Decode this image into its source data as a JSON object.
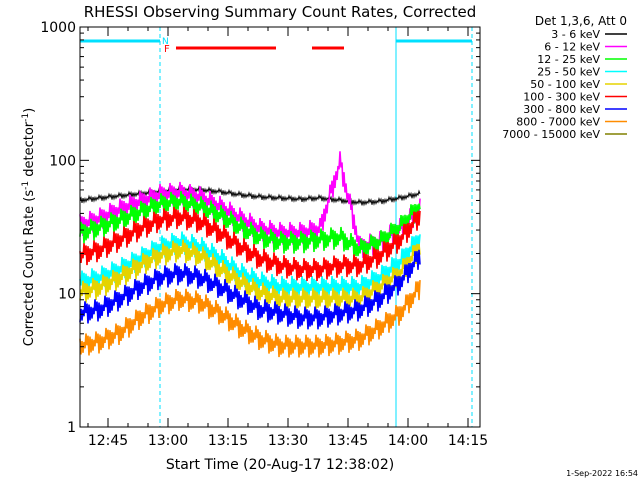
{
  "chart_data": {
    "type": "line",
    "title": "RHESSI Observing Summary Count Rates, Corrected",
    "xlabel": "Start Time (20-Aug-17 12:38:02)",
    "ylabel_main": "Corrected Count Rate (s",
    "ylabel_sup1": "-1",
    "ylabel_mid": " detector",
    "ylabel_sup2": "-1",
    "ylabel_end": ")",
    "yscale": "log",
    "ylim": [
      1,
      1000
    ],
    "xlim": [
      "12:38",
      "14:18"
    ],
    "xticks": [
      "12:45",
      "13:00",
      "13:15",
      "13:30",
      "13:45",
      "14:00",
      "14:15"
    ],
    "yticks": [
      "1",
      "10",
      "100",
      "1000"
    ],
    "legend_header": "Det 1,3,6, Att 0",
    "legend_position": "top-right",
    "timestamp": "1-Sep-2022 16:54",
    "flags": {
      "N": "N",
      "F": "F",
      "night_color": "#00e0ff",
      "flare_color": "#ff0000",
      "night_intervals": [
        [
          "12:38",
          "12:58"
        ],
        [
          "13:57",
          "14:16"
        ]
      ],
      "flare_intervals": [
        [
          "13:02",
          "13:27"
        ],
        [
          "13:36",
          "13:44"
        ]
      ]
    },
    "vlines": {
      "solid": [
        "12:38",
        "13:57"
      ],
      "dashed": [
        "12:58",
        "14:16"
      ],
      "color": "#00e0ff"
    },
    "time_grid_minutes_since_1238": [
      0,
      5,
      10,
      15,
      20,
      25,
      30,
      35,
      40,
      45,
      50,
      55,
      60,
      65,
      70,
      75,
      80,
      85
    ],
    "series": [
      {
        "name": "3 - 6 keV",
        "color": "#000000",
        "values": [
          50,
          52,
          54,
          56,
          58,
          60,
          60,
          58,
          55,
          53,
          52,
          51,
          52,
          50,
          48,
          49,
          52,
          56
        ]
      },
      {
        "name": "6 - 12 keV",
        "color": "#ff00ff",
        "values": [
          32,
          36,
          42,
          48,
          54,
          56,
          52,
          44,
          36,
          30,
          28,
          28,
          30,
          95,
          22,
          24,
          30,
          42
        ]
      },
      {
        "name": "12 - 25 keV",
        "color": "#00ff00",
        "values": [
          28,
          31,
          35,
          40,
          46,
          48,
          44,
          38,
          31,
          26,
          24,
          24,
          25,
          26,
          21,
          24,
          31,
          45
        ]
      },
      {
        "name": "25 - 50 keV",
        "color": "#00ffff",
        "values": [
          12,
          13,
          15,
          18,
          22,
          24,
          22,
          18,
          14,
          12,
          11,
          11,
          11,
          11,
          11,
          13,
          17,
          26
        ]
      },
      {
        "name": "50 - 100 keV",
        "color": "#e5d300",
        "values": [
          10,
          11,
          13,
          16,
          19,
          21,
          19,
          15,
          12,
          10,
          9,
          9,
          9,
          9,
          9,
          11,
          14,
          22
        ]
      },
      {
        "name": "100 - 300 keV",
        "color": "#ff0000",
        "values": [
          19,
          21,
          25,
          30,
          35,
          37,
          34,
          28,
          22,
          18,
          16,
          15,
          15,
          16,
          16,
          19,
          25,
          38
        ]
      },
      {
        "name": "300 - 800 keV",
        "color": "#0000ff",
        "values": [
          7,
          7.5,
          9,
          11,
          13,
          14,
          13,
          11,
          9,
          7.5,
          7,
          6.5,
          6.5,
          7,
          7.5,
          9,
          12,
          19
        ]
      },
      {
        "name": "800 - 7000 keV",
        "color": "#ff8c00",
        "values": [
          4,
          4.3,
          5,
          6.5,
          8,
          9,
          8.5,
          7,
          5.5,
          4.5,
          4,
          4,
          4,
          4.2,
          4.5,
          5.5,
          7,
          11
        ]
      },
      {
        "name": "7000 - 15000 keV",
        "color": "#808000",
        "values": []
      }
    ]
  }
}
